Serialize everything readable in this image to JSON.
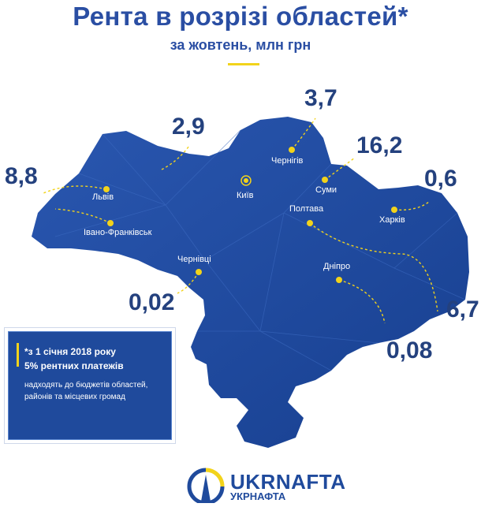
{
  "header": {
    "title": "Рента в розрізі областей*",
    "subtitle": "за жовтень, млн грн"
  },
  "regions": [
    {
      "city": "Львів",
      "value": "8,8"
    },
    {
      "city": "Івано-Франківськ",
      "value": "2,9"
    },
    {
      "city": "Чернівці",
      "value": "0,02"
    },
    {
      "city": "Київ",
      "value": ""
    },
    {
      "city": "Чернігів",
      "value": "3,7"
    },
    {
      "city": "Суми",
      "value": "16,2"
    },
    {
      "city": "Харків",
      "value": "0,6"
    },
    {
      "city": "Полтава",
      "value": "6,7"
    },
    {
      "city": "Дніпро",
      "value": "0,08"
    }
  ],
  "note": {
    "line1": "*з 1 січня 2018 року",
    "line2": "5% рентних платежів",
    "body": "надходять до бюджетів областей, районів та місцевих громад"
  },
  "logo": {
    "name": "UKRNAFTA",
    "sub": "УКРНАФТА"
  },
  "colors": {
    "map_fill": "#1f4aa0",
    "accent": "#f2d31b",
    "title": "#2a4ea3",
    "value_text": "#24417e"
  }
}
